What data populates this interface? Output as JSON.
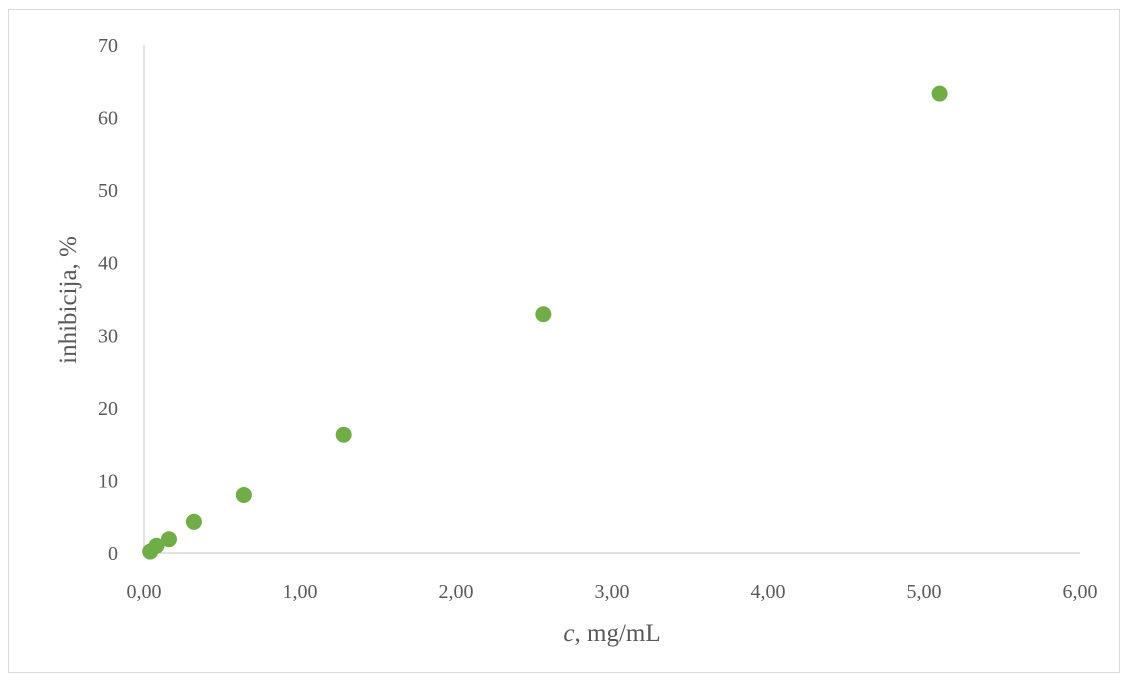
{
  "chart_data": {
    "type": "scatter",
    "xlabel_var": "c",
    "xlabel_rest": ", mg/mL",
    "ylabel": "inhibicija, %",
    "xlim": [
      0,
      6
    ],
    "ylim": [
      0,
      70
    ],
    "x_ticks": [
      "0,00",
      "1,00",
      "2,00",
      "3,00",
      "4,00",
      "5,00",
      "6,00"
    ],
    "y_ticks": [
      "0",
      "10",
      "20",
      "30",
      "40",
      "50",
      "60",
      "70"
    ],
    "grid": false,
    "legend": "none",
    "marker_color": "#70ad47",
    "axis_color": "#d9d9d9",
    "points": [
      {
        "x": 0.04,
        "y": 0.2
      },
      {
        "x": 0.08,
        "y": 1.0
      },
      {
        "x": 0.16,
        "y": 1.9
      },
      {
        "x": 0.32,
        "y": 4.3
      },
      {
        "x": 0.64,
        "y": 8.0
      },
      {
        "x": 1.28,
        "y": 16.3
      },
      {
        "x": 2.56,
        "y": 32.9
      },
      {
        "x": 5.1,
        "y": 63.3
      }
    ]
  }
}
